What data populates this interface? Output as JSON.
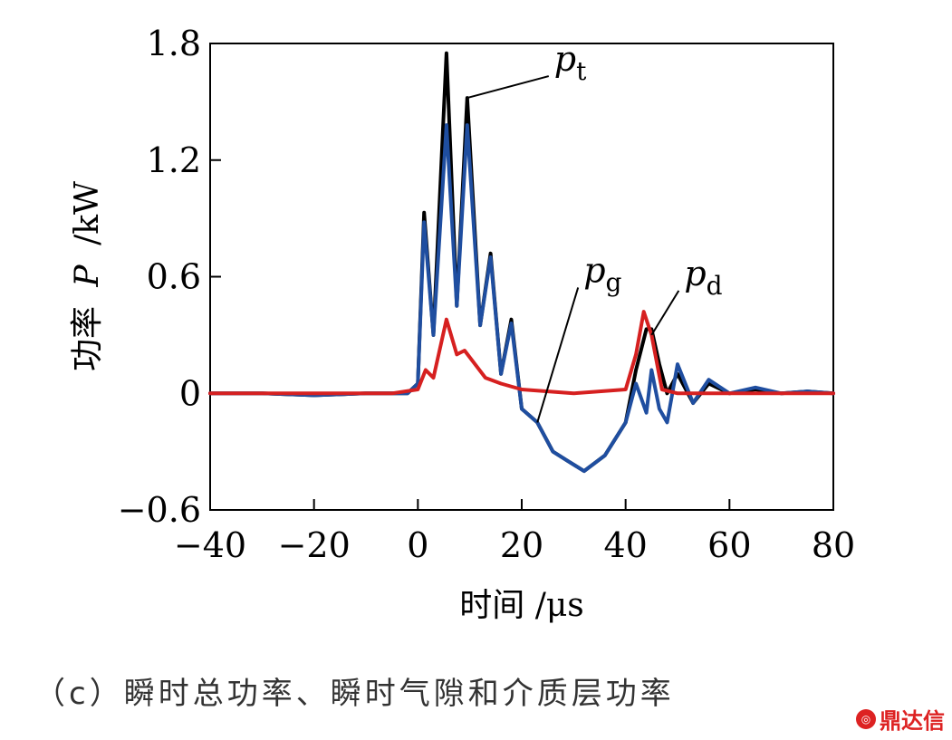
{
  "chart_data": {
    "type": "line",
    "xlabel": "时间 /μs",
    "ylabel_prefix": "功率",
    "ylabel_var": "P",
    "ylabel_unit": "/kW",
    "xlim": [
      -40,
      80
    ],
    "ylim": [
      -0.6,
      1.8
    ],
    "xticks": [
      "−40",
      "−20",
      "0",
      "20",
      "40",
      "60",
      "80"
    ],
    "yticks": [
      "−0.6",
      "0",
      "0.6",
      "1.2",
      "1.8"
    ],
    "grid": false,
    "series": [
      {
        "name": "p_t",
        "color": "#000000",
        "x": [
          -40,
          -30,
          -20,
          -10,
          -2,
          0,
          1.2,
          3,
          5.5,
          7.5,
          9.5,
          12,
          14,
          16,
          18,
          20,
          23,
          26,
          29,
          32,
          36,
          40,
          42,
          44,
          45,
          46.5,
          48,
          50,
          53,
          56,
          60,
          65,
          70,
          75,
          80
        ],
        "values": [
          0,
          0,
          -0.01,
          0,
          0,
          0.05,
          0.93,
          0.3,
          1.75,
          0.45,
          1.52,
          0.35,
          0.72,
          0.1,
          0.38,
          -0.08,
          -0.15,
          -0.3,
          -0.35,
          -0.4,
          -0.32,
          -0.15,
          0.12,
          0.33,
          0.33,
          0.15,
          0,
          0.1,
          -0.05,
          0.05,
          0,
          0.02,
          0,
          0.01,
          0
        ]
      },
      {
        "name": "p_g",
        "color": "#1f4ea0",
        "x": [
          -40,
          -30,
          -20,
          -10,
          -2,
          0,
          1.2,
          3,
          5.5,
          7.5,
          9.5,
          12,
          14,
          16,
          18,
          20,
          23,
          26,
          29,
          32,
          36,
          40,
          42,
          44,
          45,
          46.5,
          48,
          50,
          53,
          56,
          60,
          65,
          70,
          75,
          80
        ],
        "values": [
          0,
          0,
          -0.01,
          0,
          0,
          0.05,
          0.88,
          0.3,
          1.38,
          0.45,
          1.38,
          0.35,
          0.7,
          0.1,
          0.36,
          -0.08,
          -0.15,
          -0.3,
          -0.35,
          -0.4,
          -0.32,
          -0.15,
          0.05,
          -0.1,
          0.12,
          -0.08,
          -0.15,
          0.15,
          -0.05,
          0.07,
          0,
          0.03,
          0,
          0.01,
          0
        ]
      },
      {
        "name": "p_d",
        "color": "#d62020",
        "x": [
          -40,
          -20,
          -5,
          0,
          1.5,
          3,
          5.5,
          7.5,
          9,
          11,
          13,
          16,
          20,
          25,
          30,
          35,
          40,
          42,
          43.5,
          45,
          47,
          50,
          60,
          80
        ],
        "values": [
          0,
          0,
          0,
          0.02,
          0.12,
          0.08,
          0.38,
          0.2,
          0.22,
          0.15,
          0.08,
          0.05,
          0.02,
          0.01,
          0,
          0.01,
          0.02,
          0.2,
          0.42,
          0.3,
          0.02,
          0,
          0,
          0
        ]
      }
    ],
    "annotations": [
      {
        "var": "p",
        "sub": "t"
      },
      {
        "var": "p",
        "sub": "g"
      },
      {
        "var": "p",
        "sub": "d"
      }
    ]
  },
  "caption": "（c）瞬时总功率、瞬时气隙和介质层功率",
  "watermark": "鼎达信"
}
